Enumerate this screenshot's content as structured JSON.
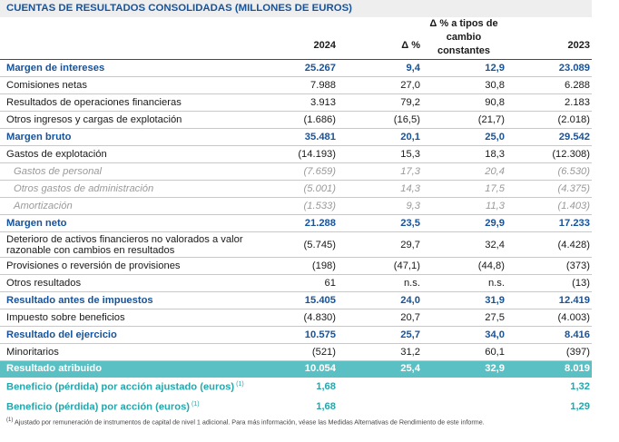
{
  "title": "CUENTAS DE RESULTADOS CONSOLIDADAS (MILLONES DE EUROS)",
  "headers": {
    "col1": "2024",
    "col2": "Δ %",
    "col3_line1": "Δ % a tipos de",
    "col3_line2": "cambio",
    "col3_line3": "constantes",
    "col4": "2023"
  },
  "rows": [
    {
      "label": "Margen de intereses",
      "v1": "25.267",
      "v2": "9,4",
      "v3": "12,9",
      "v4": "23.089"
    },
    {
      "label": "Comisiones netas",
      "v1": "7.988",
      "v2": "27,0",
      "v3": "30,8",
      "v4": "6.288"
    },
    {
      "label": "Resultados de operaciones financieras",
      "v1": "3.913",
      "v2": "79,2",
      "v3": "90,8",
      "v4": "2.183"
    },
    {
      "label": "Otros ingresos y cargas de explotación",
      "v1": "(1.686)",
      "v2": "(16,5)",
      "v3": "(21,7)",
      "v4": "(2.018)"
    },
    {
      "label": "Margen bruto",
      "v1": "35.481",
      "v2": "20,1",
      "v3": "25,0",
      "v4": "29.542"
    },
    {
      "label": "Gastos de explotación",
      "v1": "(14.193)",
      "v2": "15,3",
      "v3": "18,3",
      "v4": "(12.308)"
    },
    {
      "label": "Gastos de personal",
      "v1": "(7.659)",
      "v2": "17,3",
      "v3": "20,4",
      "v4": "(6.530)"
    },
    {
      "label": "Otros gastos de administración",
      "v1": "(5.001)",
      "v2": "14,3",
      "v3": "17,5",
      "v4": "(4.375)"
    },
    {
      "label": "Amortización",
      "v1": "(1.533)",
      "v2": "9,3",
      "v3": "11,3",
      "v4": "(1.403)"
    },
    {
      "label": "Margen neto",
      "v1": "21.288",
      "v2": "23,5",
      "v3": "29,9",
      "v4": "17.233"
    },
    {
      "label_line1": "Deterioro de activos financieros no valorados a valor",
      "label_line2": "razonable con cambios en resultados",
      "v1": "(5.745)",
      "v2": "29,7",
      "v3": "32,4",
      "v4": "(4.428)"
    },
    {
      "label": "Provisiones o reversión de provisiones",
      "v1": "(198)",
      "v2": "(47,1)",
      "v3": "(44,8)",
      "v4": "(373)"
    },
    {
      "label": "Otros resultados",
      "v1": "61",
      "v2": "n.s.",
      "v3": "n.s.",
      "v4": "(13)"
    },
    {
      "label": "Resultado antes de impuestos",
      "v1": "15.405",
      "v2": "24,0",
      "v3": "31,9",
      "v4": "12.419"
    },
    {
      "label": "Impuesto sobre beneficios",
      "v1": "(4.830)",
      "v2": "20,7",
      "v3": "27,5",
      "v4": "(4.003)"
    },
    {
      "label": "Resultado del ejercicio",
      "v1": "10.575",
      "v2": "25,7",
      "v3": "34,0",
      "v4": "8.416"
    },
    {
      "label": "Minoritarios",
      "v1": "(521)",
      "v2": "31,2",
      "v3": "60,1",
      "v4": "(397)"
    },
    {
      "label": "Resultado atribuido",
      "v1": "10.054",
      "v2": "25,4",
      "v3": "32,9",
      "v4": "8.019"
    },
    {
      "label": "Beneficio (pérdida) por acción ajustado (euros)",
      "sup": "(1)",
      "v1": "1,68",
      "v4": "1,32"
    },
    {
      "label": "Beneficio (pérdida) por acción (euros)",
      "sup": "(1)",
      "v1": "1,68",
      "v4": "1,29"
    }
  ],
  "footnote_mark": "(1)",
  "footnote": "Ajustado por remuneración de instrumentos de capital de nivel 1 adicional. Para más información, véase las Medidas Alternativas de Rendimiento de este informe.",
  "colors": {
    "blue": "#17539a",
    "teal": "#5bc0c4",
    "teal_text": "#27a6ab"
  }
}
